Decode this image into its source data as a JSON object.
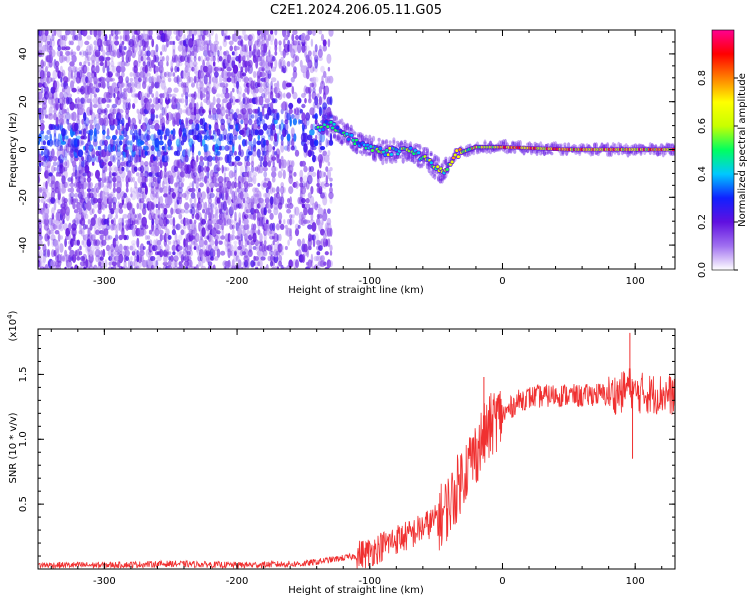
{
  "title": "C2E1.2024.206.05.11.G05",
  "chart_data": [
    {
      "type": "heatmap",
      "xlabel": "Height of straight line (km)",
      "ylabel": "Frequency (Hz)",
      "xlim": [
        -350,
        130
      ],
      "ylim": [
        -50,
        50
      ],
      "xticks": [
        -300,
        -200,
        -100,
        0,
        100
      ],
      "yticks": [
        -40,
        -20,
        0,
        20,
        40
      ],
      "colorbar": {
        "label": "Normalized spectral amplitude",
        "range": [
          0.0,
          1.0
        ],
        "ticks": [
          0.0,
          0.2,
          0.4,
          0.6,
          0.8
        ],
        "colormap": [
          "#ffffff",
          "#a070f0",
          "#6010e0",
          "#1020ff",
          "#00c8ff",
          "#00ff60",
          "#c8ff00",
          "#ffff00",
          "#ff8000",
          "#ff0000",
          "#ff0090"
        ]
      },
      "ridge_frequency_hz": [
        {
          "x": -350,
          "y": 4
        },
        {
          "x": -300,
          "y": 3
        },
        {
          "x": -250,
          "y": 3
        },
        {
          "x": -200,
          "y": 4
        },
        {
          "x": -170,
          "y": 9
        },
        {
          "x": -150,
          "y": 6
        },
        {
          "x": -130,
          "y": 11
        },
        {
          "x": -110,
          "y": 3
        },
        {
          "x": -90,
          "y": -1
        },
        {
          "x": -70,
          "y": 0
        },
        {
          "x": -55,
          "y": -5
        },
        {
          "x": -45,
          "y": -10
        },
        {
          "x": -35,
          "y": -2
        },
        {
          "x": -20,
          "y": 1
        },
        {
          "x": 0,
          "y": 1
        },
        {
          "x": 50,
          "y": 0
        },
        {
          "x": 100,
          "y": 0
        },
        {
          "x": 130,
          "y": 0
        }
      ]
    },
    {
      "type": "line",
      "xlabel": "Height of straight line (km)",
      "ylabel": "SNR (10 * v/v)",
      "y_multiplier": "(x10",
      "y_multiplier_exp": "4",
      "y_multiplier_close": ")",
      "xlim": [
        -350,
        130
      ],
      "ylim": [
        0,
        18500
      ],
      "xticks": [
        -300,
        -200,
        -100,
        0,
        100
      ],
      "yticks": [
        5000,
        10000,
        15000
      ],
      "ytick_labels": [
        "0.5",
        "1.0",
        "1.5"
      ],
      "color": "#f03030",
      "series": [
        {
          "x": [
            -350,
            -300,
            -250,
            -200,
            -150,
            -130,
            -110,
            -100,
            -90,
            -80,
            -70,
            -60,
            -50,
            -45,
            -40,
            -35,
            -30,
            -25,
            -20,
            -15,
            -10,
            -5,
            0,
            5,
            10,
            15,
            20,
            25,
            30,
            40,
            50,
            60,
            70,
            80,
            90,
            95,
            100,
            105,
            110,
            120,
            130
          ],
          "y": [
            300,
            300,
            400,
            300,
            400,
            700,
            1000,
            1300,
            1800,
            2300,
            2600,
            3200,
            3800,
            4200,
            5000,
            6000,
            7300,
            8200,
            9000,
            10000,
            10800,
            11600,
            11800,
            12300,
            12800,
            13100,
            13200,
            13300,
            13300,
            13400,
            13400,
            13300,
            13500,
            13400,
            13600,
            14200,
            13400,
            13600,
            13500,
            13500,
            13400
          ]
        }
      ],
      "spikes": [
        {
          "x": -14,
          "y": 14800
        },
        {
          "x": 96,
          "y": 18200
        },
        {
          "x": 98,
          "y": 8500
        }
      ]
    }
  ]
}
